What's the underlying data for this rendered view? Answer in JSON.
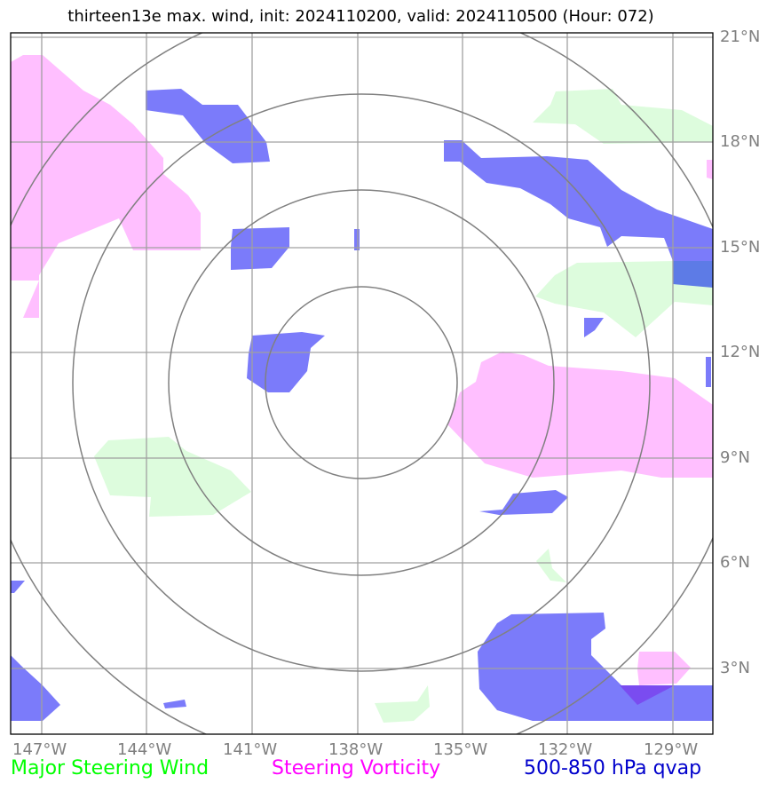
{
  "title": "thirteen13e max. wind, init: 2024110200, valid: 2024110500 (Hour: 072)",
  "lon_labels": [
    "147°W",
    "144°W",
    "141°W",
    "138°W",
    "135°W",
    "132°W",
    "129°W"
  ],
  "lat_labels": [
    "21°N",
    "18°N",
    "15°N",
    "12°N",
    "9°N",
    "6°N",
    "3°N"
  ],
  "legend": {
    "steering_wind": "Major Steering Wind",
    "steering_vorticity": "Steering Vorticity",
    "qvap": "500-850 hPa qvap"
  },
  "colors": {
    "steering_wind": "#00ff00",
    "steering_vorticity": "#ff00ff",
    "qvap": "#0000cc",
    "wind_fill": "#ddfcdd",
    "vort_fill": "#ffbfff",
    "qvap_fill": "#7b7bfa",
    "grid": "#a0a0a0",
    "rings": "#808080"
  }
}
